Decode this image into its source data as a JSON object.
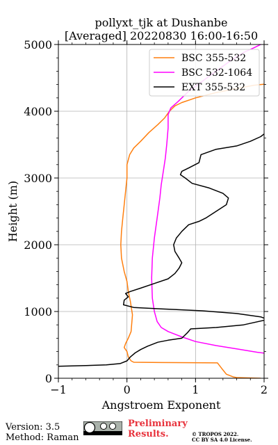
{
  "chart_data": {
    "type": "line",
    "title_line1": "pollyxt_tjk at Dushanbe",
    "title_line2": "[Averaged] 20220830 16:00-16:50",
    "xlabel": "Angstroem Exponent",
    "ylabel": "Height (m)",
    "xlim": [
      -1,
      2
    ],
    "ylim": [
      0,
      5000
    ],
    "xticks": [
      "−1",
      "0",
      "1",
      "2"
    ],
    "yticks": [
      "0",
      "1000",
      "2000",
      "3000",
      "4000",
      "5000"
    ],
    "grid": true,
    "legend_position": "top-right",
    "series": [
      {
        "name": "BSC 355-532",
        "color": "#ff7f0e",
        "points": [
          [
            1.95,
            0
          ],
          [
            1.6,
            10
          ],
          [
            1.55,
            20
          ],
          [
            1.45,
            60
          ],
          [
            1.38,
            150
          ],
          [
            1.32,
            230
          ],
          [
            0.5,
            235
          ],
          [
            0.1,
            240
          ],
          [
            0.06,
            260
          ],
          [
            0.02,
            320
          ],
          [
            0,
            400
          ],
          [
            -0.04,
            460
          ],
          [
            -0.02,
            520
          ],
          [
            0.02,
            600
          ],
          [
            0.06,
            700
          ],
          [
            0.08,
            950
          ],
          [
            0.05,
            1150
          ],
          [
            0.02,
            1300
          ],
          [
            0,
            1450
          ],
          [
            -0.04,
            1600
          ],
          [
            -0.08,
            1800
          ],
          [
            -0.09,
            2000
          ],
          [
            -0.08,
            2200
          ],
          [
            -0.06,
            2400
          ],
          [
            -0.04,
            2600
          ],
          [
            -0.02,
            2800
          ],
          [
            0,
            3000
          ],
          [
            0,
            3200
          ],
          [
            0.04,
            3350
          ],
          [
            0.1,
            3450
          ],
          [
            0.2,
            3550
          ],
          [
            0.32,
            3680
          ],
          [
            0.45,
            3800
          ],
          [
            0.55,
            3900
          ],
          [
            0.62,
            4000
          ],
          [
            0.7,
            4080
          ],
          [
            0.8,
            4130
          ],
          [
            1,
            4200
          ],
          [
            1.3,
            4280
          ],
          [
            1.65,
            4350
          ],
          [
            1.85,
            4390
          ],
          [
            2.05,
            4410
          ]
        ]
      },
      {
        "name": "BSC 532-1064",
        "color": "#ff00ff",
        "points": [
          [
            2.05,
            370
          ],
          [
            1.9,
            390
          ],
          [
            1.6,
            440
          ],
          [
            1.3,
            490
          ],
          [
            1.0,
            550
          ],
          [
            0.8,
            620
          ],
          [
            0.6,
            700
          ],
          [
            0.5,
            760
          ],
          [
            0.44,
            850
          ],
          [
            0.4,
            1000
          ],
          [
            0.37,
            1200
          ],
          [
            0.36,
            1500
          ],
          [
            0.37,
            1800
          ],
          [
            0.4,
            2100
          ],
          [
            0.44,
            2400
          ],
          [
            0.48,
            2700
          ],
          [
            0.5,
            2900
          ],
          [
            0.53,
            3100
          ],
          [
            0.56,
            3300
          ],
          [
            0.58,
            3500
          ],
          [
            0.6,
            3750
          ],
          [
            0.6,
            3950
          ],
          [
            0.64,
            4050
          ],
          [
            0.75,
            4150
          ],
          [
            0.9,
            4300
          ],
          [
            1.1,
            4450
          ],
          [
            1.3,
            4600
          ],
          [
            1.5,
            4750
          ],
          [
            1.7,
            4880
          ],
          [
            1.85,
            4950
          ],
          [
            1.95,
            5000
          ]
        ]
      },
      {
        "name": "EXT 355-532",
        "color": "#000000",
        "points": [
          [
            -1,
            180
          ],
          [
            -0.6,
            190
          ],
          [
            -0.3,
            200
          ],
          [
            -0.1,
            220
          ],
          [
            0,
            260
          ],
          [
            0.05,
            320
          ],
          [
            0.12,
            380
          ],
          [
            0.2,
            430
          ],
          [
            0.3,
            480
          ],
          [
            0.45,
            540
          ],
          [
            0.6,
            570
          ],
          [
            0.8,
            600
          ],
          [
            0.88,
            680
          ],
          [
            0.93,
            740
          ],
          [
            1.3,
            760
          ],
          [
            1.7,
            800
          ],
          [
            2.05,
            880
          ],
          [
            1.95,
            920
          ],
          [
            1.6,
            970
          ],
          [
            1.1,
            1010
          ],
          [
            0.5,
            1040
          ],
          [
            0.1,
            1060
          ],
          [
            -0.05,
            1100
          ],
          [
            -0.04,
            1170
          ],
          [
            0.02,
            1220
          ],
          [
            -0.02,
            1270
          ],
          [
            0.05,
            1300
          ],
          [
            0.2,
            1350
          ],
          [
            0.4,
            1420
          ],
          [
            0.6,
            1490
          ],
          [
            0.7,
            1570
          ],
          [
            0.76,
            1650
          ],
          [
            0.8,
            1730
          ],
          [
            0.76,
            1800
          ],
          [
            0.7,
            1900
          ],
          [
            0.68,
            2000
          ],
          [
            0.72,
            2100
          ],
          [
            0.8,
            2200
          ],
          [
            0.9,
            2300
          ],
          [
            1.05,
            2350
          ],
          [
            1.15,
            2400
          ],
          [
            1.3,
            2500
          ],
          [
            1.45,
            2600
          ],
          [
            1.48,
            2700
          ],
          [
            1.4,
            2770
          ],
          [
            1.2,
            2850
          ],
          [
            0.95,
            2920
          ],
          [
            0.85,
            3000
          ],
          [
            0.78,
            3050
          ],
          [
            0.8,
            3100
          ],
          [
            0.9,
            3150
          ],
          [
            1.05,
            3230
          ],
          [
            1.08,
            3350
          ],
          [
            1.3,
            3430
          ],
          [
            1.6,
            3480
          ],
          [
            1.8,
            3550
          ],
          [
            1.95,
            3620
          ],
          [
            2.05,
            3700
          ]
        ]
      }
    ]
  },
  "footer": {
    "version": "Version: 3.5",
    "method": "Method: Raman",
    "preliminary_line1": "Preliminary",
    "preliminary_line2": "Results.",
    "copyright_line1": "© TROPOS 2022.",
    "copyright_line2": "CC BY SA 4.0 License."
  }
}
